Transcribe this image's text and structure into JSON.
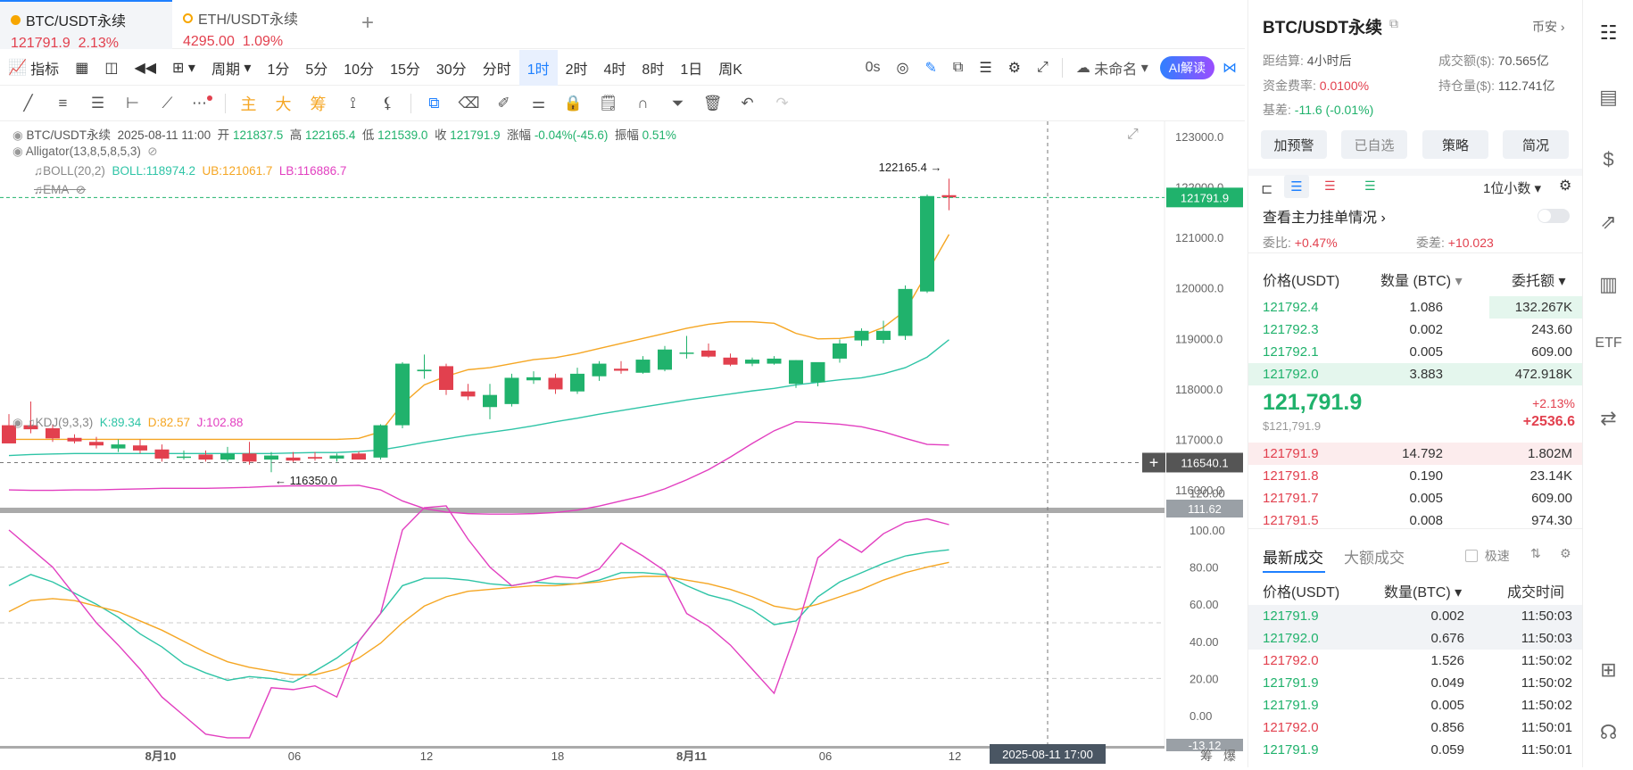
{
  "tabs": [
    {
      "name": "BTC/USDT永续",
      "price": "121791.9",
      "change": "2.13%"
    },
    {
      "name": "ETH/USDT永续",
      "price": "4295.00",
      "change": "1.09%"
    }
  ],
  "toolbar": {
    "indicator": "指标",
    "period": "周期",
    "intervals": [
      "1分",
      "5分",
      "10分",
      "15分",
      "30分",
      "分时",
      "1时",
      "2时",
      "4时",
      "8时",
      "1日",
      "周K"
    ],
    "active_interval": "1时",
    "countdown": "0s",
    "layout_name": "未命名",
    "ai_label": "AI解读",
    "draw_labels": [
      "主",
      "大",
      "筹"
    ]
  },
  "legend": {
    "symbol": "BTC/USDT永续",
    "time": "2025-08-11 11:00",
    "open_l": "开",
    "open": "121837.5",
    "high_l": "高",
    "high": "122165.4",
    "low_l": "低",
    "low": "121539.0",
    "close_l": "收",
    "close": "121791.9",
    "chg_l": "涨幅",
    "chg": "-0.04%(-45.6)",
    "amp_l": "振幅",
    "amp": "0.51%",
    "alligator": "Alligator(13,8,5,8,5,3)",
    "boll": "BOLL(20,2)",
    "boll_mid": "BOLL:118974.2",
    "boll_ub": "UB:121061.7",
    "boll_lb": "LB:116886.7",
    "ema": "EMA",
    "kdj": "KDJ(9,3,3)",
    "kdj_k": "K:89.34",
    "kdj_d": "D:82.57",
    "kdj_j": "J:102.88"
  },
  "colors": {
    "up": "#20b26c",
    "down": "#e2404e",
    "boll_mid": "#2ec4a6",
    "boll_ub": "#f5a623",
    "boll_lb": "#e23fc0",
    "accent": "#1e80ff"
  },
  "annotations": {
    "high_marker": "122165.4",
    "low_marker": "116350.0",
    "last_price_tag": "121791.9",
    "crosshair_price": "116540.1",
    "crosshair_time": "2025-08-11 17:00",
    "kdj_top_tag": "111.62",
    "kdj_bottom_tag": "-13.12"
  },
  "price_axis": [
    "123000.0",
    "122000.0",
    "121000.0",
    "120000.0",
    "119000.0",
    "118000.0",
    "117000.0",
    "116000.0"
  ],
  "kdj_axis": [
    "120.00",
    "100.00",
    "80.00",
    "60.00",
    "40.00",
    "20.00",
    "0.00"
  ],
  "time_axis": [
    "8月10",
    "06",
    "12",
    "18",
    "8月11",
    "06",
    "12"
  ],
  "axis_bottom_icons": [
    "筹",
    "爆"
  ],
  "chart_data": {
    "type": "candlestick",
    "interval": "1时",
    "ylim": [
      115700,
      123300
    ],
    "candles": [
      {
        "o": 117280,
        "h": 117500,
        "l": 116950,
        "c": 116920
      },
      {
        "o": 117280,
        "h": 117750,
        "l": 117120,
        "c": 117200
      },
      {
        "o": 117220,
        "h": 117300,
        "l": 116950,
        "c": 117020
      },
      {
        "o": 117030,
        "h": 117100,
        "l": 116920,
        "c": 116960
      },
      {
        "o": 116950,
        "h": 117050,
        "l": 116820,
        "c": 116880
      },
      {
        "o": 116820,
        "h": 117000,
        "l": 116750,
        "c": 116900
      },
      {
        "o": 116880,
        "h": 117000,
        "l": 116720,
        "c": 116780
      },
      {
        "o": 116800,
        "h": 116900,
        "l": 116560,
        "c": 116620
      },
      {
        "o": 116650,
        "h": 116780,
        "l": 116600,
        "c": 116660
      },
      {
        "o": 116700,
        "h": 116780,
        "l": 116560,
        "c": 116600
      },
      {
        "o": 116600,
        "h": 116850,
        "l": 116560,
        "c": 116720
      },
      {
        "o": 116720,
        "h": 116950,
        "l": 116500,
        "c": 116560
      },
      {
        "o": 116600,
        "h": 116750,
        "l": 116350,
        "c": 116680
      },
      {
        "o": 116640,
        "h": 116750,
        "l": 116550,
        "c": 116580
      },
      {
        "o": 116650,
        "h": 116750,
        "l": 116580,
        "c": 116620
      },
      {
        "o": 116620,
        "h": 116720,
        "l": 116560,
        "c": 116680
      },
      {
        "o": 116720,
        "h": 116760,
        "l": 116630,
        "c": 116600
      },
      {
        "o": 116640,
        "h": 117300,
        "l": 116600,
        "c": 117280
      },
      {
        "o": 117280,
        "h": 118530,
        "l": 117220,
        "c": 118500
      },
      {
        "o": 118350,
        "h": 118680,
        "l": 118200,
        "c": 118380
      },
      {
        "o": 118450,
        "h": 118500,
        "l": 117880,
        "c": 117980
      },
      {
        "o": 117950,
        "h": 118100,
        "l": 117780,
        "c": 117850
      },
      {
        "o": 117640,
        "h": 118100,
        "l": 117400,
        "c": 117880
      },
      {
        "o": 117700,
        "h": 118300,
        "l": 117650,
        "c": 118220
      },
      {
        "o": 118170,
        "h": 118350,
        "l": 118100,
        "c": 118230
      },
      {
        "o": 118220,
        "h": 118300,
        "l": 117900,
        "c": 117990
      },
      {
        "o": 117950,
        "h": 118420,
        "l": 117900,
        "c": 118300
      },
      {
        "o": 118250,
        "h": 118550,
        "l": 118160,
        "c": 118500
      },
      {
        "o": 118400,
        "h": 118550,
        "l": 118300,
        "c": 118360
      },
      {
        "o": 118320,
        "h": 118650,
        "l": 118300,
        "c": 118580
      },
      {
        "o": 118380,
        "h": 118850,
        "l": 118350,
        "c": 118780
      },
      {
        "o": 118700,
        "h": 119050,
        "l": 118600,
        "c": 118720
      },
      {
        "o": 118760,
        "h": 118900,
        "l": 118620,
        "c": 118640
      },
      {
        "o": 118620,
        "h": 118700,
        "l": 118450,
        "c": 118480
      },
      {
        "o": 118500,
        "h": 118620,
        "l": 118450,
        "c": 118580
      },
      {
        "o": 118500,
        "h": 118650,
        "l": 118480,
        "c": 118600
      },
      {
        "o": 118100,
        "h": 118570,
        "l": 118020,
        "c": 118570
      },
      {
        "o": 118130,
        "h": 118520,
        "l": 118050,
        "c": 118530
      },
      {
        "o": 118600,
        "h": 118980,
        "l": 118520,
        "c": 118900
      },
      {
        "o": 118960,
        "h": 119200,
        "l": 118850,
        "c": 119150
      },
      {
        "o": 118970,
        "h": 119350,
        "l": 118900,
        "c": 119150
      },
      {
        "o": 119050,
        "h": 120050,
        "l": 118970,
        "c": 119980
      },
      {
        "o": 119930,
        "h": 121850,
        "l": 119900,
        "c": 121820
      },
      {
        "o": 121837.5,
        "h": 122165.4,
        "l": 121539.0,
        "c": 121791.9
      }
    ],
    "boll_ub": [
      117000,
      117000,
      117000,
      117000,
      117000,
      117000,
      117000,
      117000,
      117000,
      117000,
      117000,
      117000,
      117000,
      117000,
      117000,
      117000,
      117020,
      117150,
      117700,
      118080,
      118250,
      118380,
      118420,
      118500,
      118580,
      118620,
      118700,
      118800,
      118900,
      119000,
      119100,
      119200,
      119280,
      119330,
      119330,
      119300,
      119100,
      118990,
      119000,
      119050,
      119220,
      119550,
      120300,
      121060
    ],
    "boll_mid": [
      116680,
      116700,
      116710,
      116720,
      116720,
      116720,
      116720,
      116720,
      116720,
      116720,
      116720,
      116720,
      116720,
      116730,
      116740,
      116740,
      116760,
      116790,
      116860,
      116940,
      117010,
      117080,
      117140,
      117200,
      117270,
      117350,
      117420,
      117500,
      117570,
      117640,
      117710,
      117780,
      117840,
      117900,
      117960,
      118010,
      118080,
      118130,
      118180,
      118220,
      118300,
      118420,
      118630,
      118974
    ],
    "boll_lb": [
      116000,
      115990,
      115990,
      116000,
      116000,
      116010,
      116020,
      116030,
      116030,
      116030,
      116040,
      116050,
      116070,
      116080,
      116080,
      116080,
      116090,
      116000,
      115780,
      115630,
      115560,
      115530,
      115520,
      115520,
      115530,
      115550,
      115600,
      115680,
      115780,
      115880,
      116020,
      116200,
      116400,
      116650,
      116920,
      117170,
      117350,
      117330,
      117300,
      117250,
      117150,
      117020,
      116900,
      116887
    ],
    "kdj_k": [
      70,
      76,
      72,
      66,
      60,
      53,
      44,
      37,
      28,
      23,
      19,
      21,
      20,
      18,
      24,
      31,
      40,
      55,
      70,
      74,
      74,
      73,
      71,
      70,
      72,
      71,
      71,
      73,
      77,
      77,
      76,
      70,
      65,
      62,
      57,
      49,
      51,
      64,
      72,
      77,
      82,
      86,
      88,
      89.34
    ],
    "kdj_d": [
      56,
      62,
      63,
      62,
      59,
      56,
      51,
      46,
      40,
      34,
      29,
      26,
      24,
      22,
      22,
      25,
      31,
      39,
      50,
      59,
      64,
      67,
      68,
      69,
      70,
      70,
      71,
      72,
      74,
      75,
      75,
      73,
      71,
      68,
      64,
      59,
      57,
      60,
      64,
      68,
      73,
      77,
      80,
      82.57
    ],
    "kdj_j": [
      100,
      90,
      80,
      65,
      50,
      38,
      25,
      10,
      0,
      -10,
      -12,
      -12,
      15,
      14,
      16,
      10,
      40,
      55,
      100,
      112,
      113,
      95,
      80,
      70,
      72,
      75,
      74,
      79,
      93,
      86,
      78,
      55,
      48,
      38,
      25,
      12,
      45,
      85,
      95,
      88,
      98,
      104,
      106,
      102.88
    ]
  },
  "right": {
    "title": "BTC/USDT永续",
    "venue": "币安",
    "settle_l": "距结算:",
    "settle": "4小时后",
    "vol_l": "成交额($):",
    "vol": "70.565亿",
    "fund_l": "资金费率:",
    "fund": "0.0100%",
    "oi_l": "持仓量($):",
    "oi": "112.741亿",
    "basis_l": "基差:",
    "basis": "-11.6 (-0.01%)",
    "buttons": [
      "加预警",
      "已自选",
      "策略",
      "简况"
    ],
    "decimals": "1位小数",
    "depth_link": "查看主力挂单情况",
    "ratio_l": "委比:",
    "ratio": "+0.47%",
    "diff_l": "委差:",
    "diff": "+10.023",
    "ob_headers": [
      "价格(USDT)",
      "数量 (BTC)",
      "委托额"
    ],
    "bids": [
      {
        "p": "121792.4",
        "q": "1.086",
        "a": "132.267K",
        "w": 0.28
      },
      {
        "p": "121792.3",
        "q": "0.002",
        "a": "243.60",
        "w": 0.0
      },
      {
        "p": "121792.1",
        "q": "0.005",
        "a": "609.00",
        "w": 0.0
      },
      {
        "p": "121792.0",
        "q": "3.883",
        "a": "472.918K",
        "w": 1.0
      }
    ],
    "mid_price": "121,791.9",
    "mid_usd": "$121,791.9",
    "mid_pct": "+2.13%",
    "mid_abs": "+2536.6",
    "asks": [
      {
        "p": "121791.9",
        "q": "14.792",
        "a": "1.802M",
        "w": 1.0
      },
      {
        "p": "121791.8",
        "q": "0.190",
        "a": "23.14K",
        "w": 0.0
      },
      {
        "p": "121791.7",
        "q": "0.005",
        "a": "609.00",
        "w": 0.0
      },
      {
        "p": "121791.5",
        "q": "0.008",
        "a": "974.30",
        "w": 0.0
      }
    ],
    "trade_tabs": [
      "最新成交",
      "大额成交"
    ],
    "fast_l": "极速",
    "trade_headers": [
      "价格(USDT)",
      "数量(BTC)",
      "成交时间"
    ],
    "trades": [
      {
        "p": "121791.9",
        "q": "0.002",
        "t": "11:50:03",
        "s": "up"
      },
      {
        "p": "121792.0",
        "q": "0.676",
        "t": "11:50:03",
        "s": "up"
      },
      {
        "p": "121792.0",
        "q": "1.526",
        "t": "11:50:02",
        "s": "dn"
      },
      {
        "p": "121791.9",
        "q": "0.049",
        "t": "11:50:02",
        "s": "up"
      },
      {
        "p": "121791.9",
        "q": "0.005",
        "t": "11:50:02",
        "s": "up"
      },
      {
        "p": "121792.0",
        "q": "0.856",
        "t": "11:50:01",
        "s": "dn"
      },
      {
        "p": "121791.9",
        "q": "0.059",
        "t": "11:50:01",
        "s": "up"
      }
    ]
  }
}
